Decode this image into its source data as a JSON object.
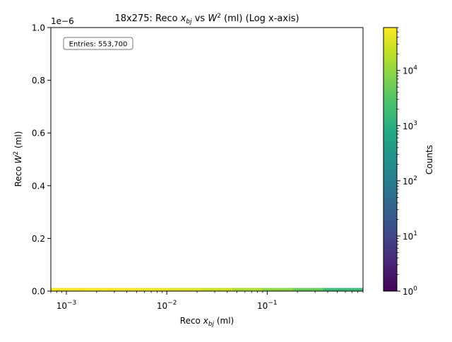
{
  "chart_data": {
    "type": "heatmap",
    "title": {
      "prefix": "18x275: Reco ",
      "x_sym": "x",
      "x_sub": "bj",
      "mid": " vs ",
      "w_sym": "W",
      "w_sup": "2",
      "suffix": " (ml) (Log x-axis)"
    },
    "xlabel": {
      "prefix": "Reco ",
      "sym": "x",
      "sub": "bj",
      "suffix": " (ml)"
    },
    "ylabel": {
      "prefix": "Reco ",
      "sym": "W",
      "sup": "2",
      "suffix": " (ml)"
    },
    "x_scale": "log",
    "xlim": [
      0.0007,
      0.9
    ],
    "x_ticks": [
      {
        "value": 0.001,
        "base": "10",
        "exp": "−3"
      },
      {
        "value": 0.01,
        "base": "10",
        "exp": "−2"
      },
      {
        "value": 0.1,
        "base": "10",
        "exp": "−1"
      }
    ],
    "ylim": [
      0,
      1.0
    ],
    "y_multiplier": "1e−6",
    "y_ticks": [
      "0.0",
      "0.2",
      "0.4",
      "0.6",
      "0.8",
      "1.0"
    ],
    "colormap": "viridis",
    "color_scale": "log",
    "colorbar_label": "Counts",
    "colorbar_range": [
      1,
      60000
    ],
    "colorbar_ticks": [
      {
        "value": 1,
        "base": "10",
        "exp": "0"
      },
      {
        "value": 10,
        "base": "10",
        "exp": "1"
      },
      {
        "value": 100,
        "base": "10",
        "exp": "2"
      },
      {
        "value": 1000,
        "base": "10",
        "exp": "3"
      },
      {
        "value": 10000,
        "base": "10",
        "exp": "4"
      }
    ],
    "entries_label": "Entries: 553,700",
    "grid": false,
    "band": {
      "y_range": [
        0,
        0.012
      ],
      "cells": [
        {
          "x0": 0.0007,
          "x1": 0.0014,
          "count": 55000
        },
        {
          "x0": 0.0014,
          "x1": 0.0028,
          "count": 60000
        },
        {
          "x0": 0.0028,
          "x1": 0.0056,
          "count": 55000
        },
        {
          "x0": 0.0056,
          "x1": 0.011,
          "count": 45000
        },
        {
          "x0": 0.011,
          "x1": 0.022,
          "count": 35000
        },
        {
          "x0": 0.022,
          "x1": 0.045,
          "count": 25000
        },
        {
          "x0": 0.045,
          "x1": 0.09,
          "count": 16000
        },
        {
          "x0": 0.09,
          "x1": 0.18,
          "count": 9000
        },
        {
          "x0": 0.18,
          "x1": 0.36,
          "count": 4500
        },
        {
          "x0": 0.36,
          "x1": 0.9,
          "count": 1800
        }
      ]
    }
  }
}
